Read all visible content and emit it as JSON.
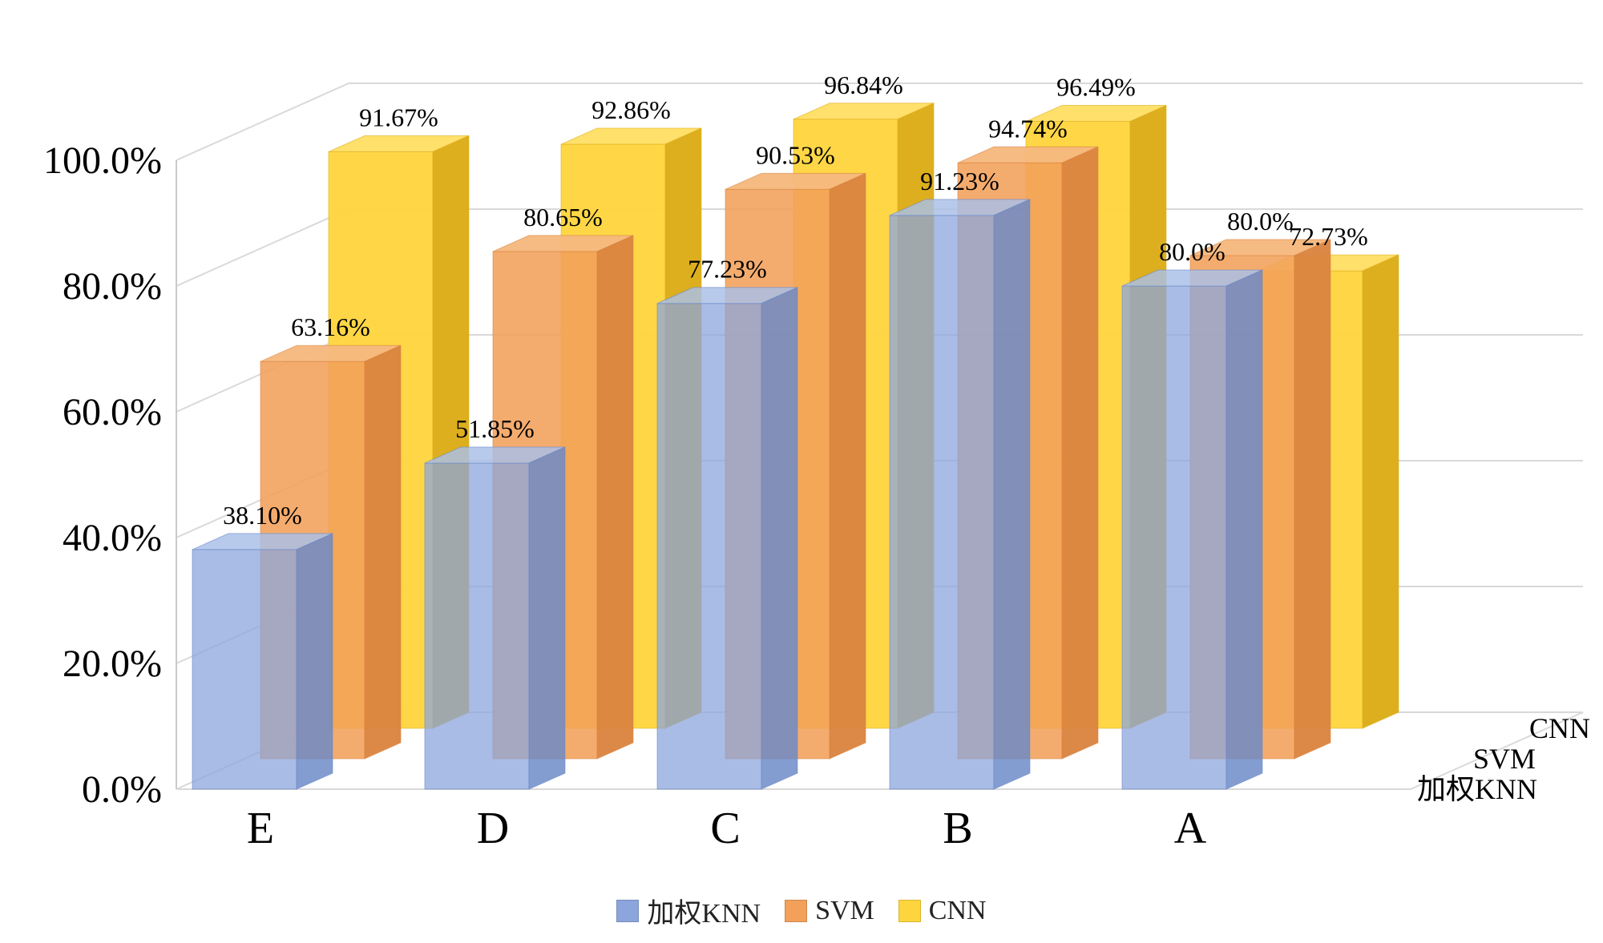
{
  "chart_data": {
    "type": "bar",
    "projection": "3d-column",
    "title": "",
    "categories": [
      "E",
      "D",
      "C",
      "B",
      "A"
    ],
    "series": [
      {
        "name": "加权KNN",
        "front": "#8CA5DC",
        "top": "#AABFE8",
        "side": "#6B89C8",
        "opacity": 0.75,
        "values": [
          38.1,
          51.85,
          77.23,
          91.23,
          80.0
        ],
        "labels": [
          "38.10%",
          "51.85%",
          "77.23%",
          "91.23%",
          "80.0%"
        ]
      },
      {
        "name": "SVM",
        "front": "#F2A05A",
        "top": "#F6B87E",
        "side": "#DB8440",
        "opacity": 0.88,
        "values": [
          63.16,
          80.65,
          90.53,
          94.74,
          80.0
        ],
        "labels": [
          "63.16%",
          "80.65%",
          "90.53%",
          "94.74%",
          "80.0%"
        ]
      },
      {
        "name": "CNN",
        "front": "#FFD53E",
        "top": "#FFE06A",
        "side": "#DDAF1E",
        "opacity": 0.96,
        "values": [
          91.67,
          92.86,
          96.84,
          96.49,
          72.73
        ],
        "labels": [
          "91.67%",
          "92.86%",
          "96.84%",
          "96.49%",
          "72.73%"
        ]
      }
    ],
    "y_axis": {
      "ticks": [
        "0.0%",
        "20.0%",
        "40.0%",
        "60.0%",
        "80.0%",
        "100.0%"
      ],
      "min": 0,
      "max": 100,
      "grid": true
    },
    "depth_axis": {
      "labels": [
        "加权KNN",
        "SVM",
        "CNN"
      ]
    },
    "legend": {
      "position": "bottom",
      "items": [
        "加权KNN",
        "SVM",
        "CNN"
      ]
    }
  },
  "colors": {
    "grid": "#D9D9D9",
    "axis": "#C9C9C9",
    "text": "#000000",
    "background": "#FFFFFF"
  }
}
